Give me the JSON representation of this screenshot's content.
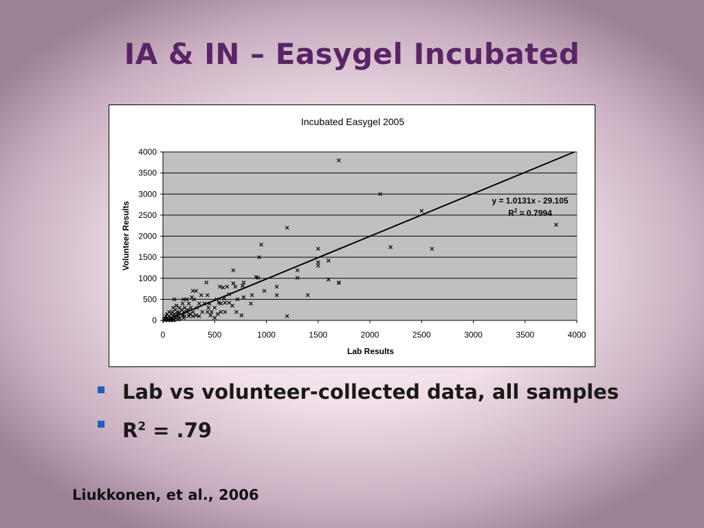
{
  "slide": {
    "title": "IA & IN – Easygel Incubated",
    "bullets": [
      {
        "text": "Lab vs volunteer-collected data, all samples"
      },
      {
        "prefix": "R",
        "sup": "2",
        "suffix": " = .79"
      }
    ],
    "citation": "Liukkonen, et al., 2006"
  },
  "chart_data": {
    "type": "scatter",
    "title": "Incubated Easygel 2005",
    "xlabel": "Lab Results",
    "ylabel": "Volunteer Results",
    "xlim": [
      0,
      4000
    ],
    "ylim": [
      0,
      4000
    ],
    "x_ticks": [
      0,
      500,
      1000,
      1500,
      2000,
      2500,
      3000,
      3500,
      4000
    ],
    "y_ticks": [
      0,
      500,
      1000,
      1500,
      2000,
      2500,
      3000,
      3500,
      4000
    ],
    "grid": "horizontal",
    "marker": "x",
    "plot_background": "#c0c0c0",
    "trendline": {
      "slope": 1.0131,
      "intercept": -29.105,
      "equation": "y = 1.0131x - 29.105",
      "r2_prefix": "R",
      "r2_sup": "2",
      "r2_suffix": " = 0.7994"
    },
    "points": [
      [
        1700,
        3800
      ],
      [
        2100,
        3000
      ],
      [
        2500,
        2600
      ],
      [
        3800,
        2270
      ],
      [
        1200,
        2200
      ],
      [
        2200,
        1740
      ],
      [
        2600,
        1700
      ],
      [
        950,
        1800
      ],
      [
        1500,
        1700
      ],
      [
        930,
        1500
      ],
      [
        1600,
        1420
      ],
      [
        1500,
        1380
      ],
      [
        1500,
        1300
      ],
      [
        1300,
        1190
      ],
      [
        680,
        1190
      ],
      [
        900,
        1030
      ],
      [
        920,
        1010
      ],
      [
        1300,
        1010
      ],
      [
        1600,
        970
      ],
      [
        1700,
        900
      ],
      [
        1700,
        890
      ],
      [
        420,
        900
      ],
      [
        780,
        900
      ],
      [
        680,
        880
      ],
      [
        700,
        800
      ],
      [
        550,
        800
      ],
      [
        580,
        780
      ],
      [
        620,
        800
      ],
      [
        1100,
        800
      ],
      [
        770,
        820
      ],
      [
        980,
        700
      ],
      [
        290,
        700
      ],
      [
        320,
        700
      ],
      [
        640,
        620
      ],
      [
        1100,
        600
      ],
      [
        1400,
        600
      ],
      [
        860,
        600
      ],
      [
        370,
        600
      ],
      [
        430,
        600
      ],
      [
        280,
        550
      ],
      [
        200,
        500
      ],
      [
        230,
        500
      ],
      [
        110,
        500
      ],
      [
        300,
        500
      ],
      [
        520,
        500
      ],
      [
        720,
        500
      ],
      [
        780,
        550
      ],
      [
        590,
        520
      ],
      [
        540,
        420
      ],
      [
        560,
        400
      ],
      [
        640,
        420
      ],
      [
        850,
        400
      ],
      [
        600,
        420
      ],
      [
        670,
        350
      ],
      [
        350,
        400
      ],
      [
        400,
        400
      ],
      [
        450,
        400
      ],
      [
        250,
        400
      ],
      [
        190,
        400
      ],
      [
        130,
        350
      ],
      [
        160,
        300
      ],
      [
        210,
        300
      ],
      [
        270,
        300
      ],
      [
        330,
        300
      ],
      [
        440,
        300
      ],
      [
        500,
        300
      ],
      [
        100,
        300
      ],
      [
        120,
        250
      ],
      [
        180,
        250
      ],
      [
        240,
        250
      ],
      [
        290,
        200
      ],
      [
        380,
        200
      ],
      [
        430,
        200
      ],
      [
        470,
        200
      ],
      [
        560,
        200
      ],
      [
        600,
        200
      ],
      [
        710,
        200
      ],
      [
        60,
        200
      ],
      [
        90,
        200
      ],
      [
        140,
        200
      ],
      [
        200,
        200
      ],
      [
        230,
        200
      ],
      [
        160,
        180
      ],
      [
        110,
        150
      ],
      [
        40,
        150
      ],
      [
        80,
        150
      ],
      [
        140,
        150
      ],
      [
        190,
        120
      ],
      [
        260,
        150
      ],
      [
        320,
        120
      ],
      [
        460,
        120
      ],
      [
        530,
        150
      ],
      [
        760,
        120
      ],
      [
        1200,
        100
      ],
      [
        30,
        100
      ],
      [
        60,
        100
      ],
      [
        100,
        100
      ],
      [
        150,
        100
      ],
      [
        210,
        100
      ],
      [
        250,
        100
      ],
      [
        290,
        100
      ],
      [
        350,
        100
      ],
      [
        500,
        60
      ],
      [
        20,
        50
      ],
      [
        40,
        50
      ],
      [
        70,
        50
      ],
      [
        90,
        50
      ],
      [
        120,
        60
      ],
      [
        160,
        50
      ],
      [
        200,
        60
      ],
      [
        10,
        20
      ],
      [
        30,
        20
      ],
      [
        50,
        20
      ],
      [
        80,
        10
      ],
      [
        110,
        10
      ],
      [
        150,
        20
      ],
      [
        20,
        0
      ],
      [
        50,
        0
      ],
      [
        70,
        0
      ],
      [
        100,
        0
      ]
    ]
  }
}
